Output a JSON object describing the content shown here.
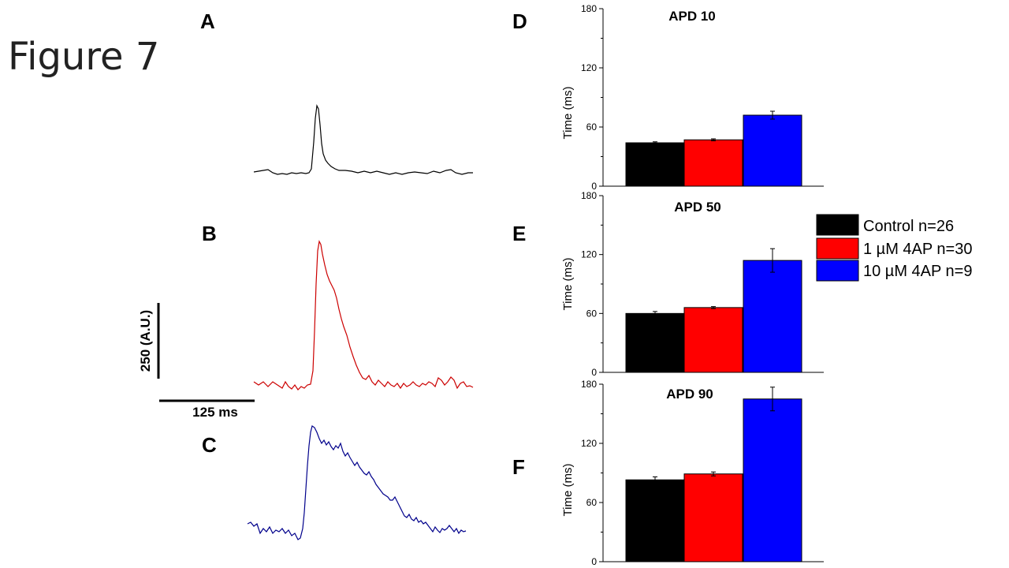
{
  "figure": {
    "title": "Figure 7",
    "panels": {
      "a": "A",
      "b": "B",
      "c": "C",
      "d": "D",
      "e": "E",
      "f": "F"
    }
  },
  "scale_bar": {
    "vertical": "250 (A.U.)",
    "horizontal": "125 ms"
  },
  "traces": [
    {
      "panel": "A",
      "color": "#000000",
      "group": "Control"
    },
    {
      "panel": "B",
      "color": "#cc0000",
      "group": "1 µM 4AP"
    },
    {
      "panel": "C",
      "color": "#00008b",
      "group": "10 µM 4AP"
    }
  ],
  "legend": [
    {
      "label": "Control n=26",
      "color": "#000000"
    },
    {
      "label": "1 µM 4AP n=30",
      "color": "#ff0000"
    },
    {
      "label": "10 µM 4AP n=9",
      "color": "#0000ff"
    }
  ],
  "chart_data": [
    {
      "type": "bar",
      "panel": "D",
      "title": "APD 10",
      "ylabel": "Time (ms)",
      "ylim": [
        0,
        180
      ],
      "yticks": [
        0,
        60,
        120,
        180
      ],
      "categories": [
        "Control n=26",
        "1 µM 4AP n=30",
        "10 µM 4AP n=9"
      ],
      "values": [
        44,
        47,
        72
      ],
      "errors": [
        1,
        1,
        4
      ],
      "colors": [
        "#000000",
        "#ff0000",
        "#0000ff"
      ]
    },
    {
      "type": "bar",
      "panel": "E",
      "title": "APD 50",
      "ylabel": "Time (ms)",
      "ylim": [
        0,
        180
      ],
      "yticks": [
        0,
        60,
        120,
        180
      ],
      "categories": [
        "Control n=26",
        "1 µM 4AP n=30",
        "10 µM 4AP n=9"
      ],
      "values": [
        60,
        66,
        114
      ],
      "errors": [
        2,
        1,
        12
      ],
      "colors": [
        "#000000",
        "#ff0000",
        "#0000ff"
      ]
    },
    {
      "type": "bar",
      "panel": "F",
      "title": "APD 90",
      "ylabel": "Time (ms)",
      "ylim": [
        0,
        180
      ],
      "yticks": [
        0,
        60,
        120,
        180
      ],
      "categories": [
        "Control n=26",
        "1 µM 4AP n=30",
        "10 µM 4AP n=9"
      ],
      "values": [
        83,
        89,
        165
      ],
      "errors": [
        3,
        2,
        12
      ],
      "colors": [
        "#000000",
        "#ff0000",
        "#0000ff"
      ]
    }
  ]
}
